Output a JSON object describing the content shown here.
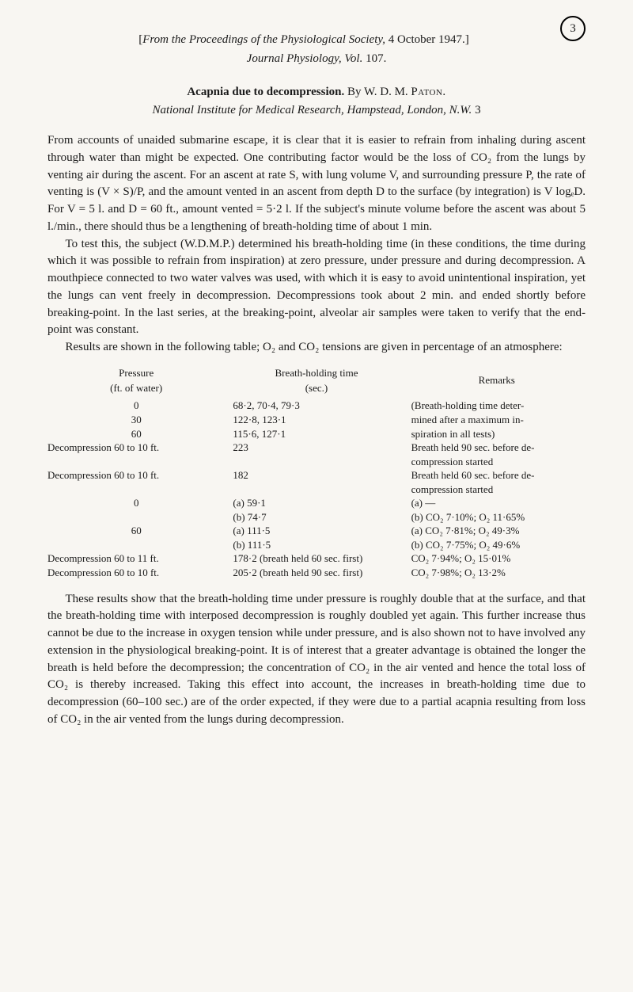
{
  "page_number": "3",
  "source_prefix": "[",
  "source_italic1": "From the Proceedings of the Physiological Society,",
  "source_date": " 4 October 1947.]",
  "source_line2": "Journal Physiology, Vol.",
  "source_vol": " 107.",
  "title_bold": "Acapnia due to decompression.",
  "title_by": " By W. D. M. ",
  "author_surname": "Paton.",
  "affil_italic": "National Institute for Medical Research, Hampstead, London, N.W.",
  "affil_num": " 3",
  "para1": "From accounts of unaided submarine escape, it is clear that it is easier to refrain from inhaling during ascent through water than might be expected. One contributing factor would be the loss of CO₂ from the lungs by venting air during the ascent. For an ascent at rate S, with lung volume V, and surrounding pressure P, the rate of venting is (V × S)/P, and the amount vented in an ascent from depth D to the surface (by integration) is V logₑD. For V = 5 l. and D = 60 ft., amount vented = 5·2 l. If the subject's minute volume before the ascent was about 5 l./min., there should thus be a lengthening of breath-holding time of about 1 min.",
  "para2": "To test this, the subject (W.D.M.P.) determined his breath-holding time (in these conditions, the time during which it was possible to refrain from inspiration) at zero pressure, under pressure and during decompression. A mouthpiece connected to two water valves was used, with which it is easy to avoid unintentional inspiration, yet the lungs can vent freely in decompression. Decompressions took about 2 min. and ended shortly before breaking-point. In the last series, at the breaking-point, alveolar air samples were taken to verify that the end-point was constant.",
  "para3": "Results are shown in the following table; O₂ and CO₂ tensions are given in percentage of an atmosphere:",
  "table": {
    "header": {
      "col1_l1": "Pressure",
      "col1_l2": "(ft. of water)",
      "col2_l1": "Breath-holding time",
      "col2_l2": "(sec.)",
      "col3": "Remarks"
    },
    "rows": [
      {
        "c1": "0",
        "c2": "68·2, 70·4, 79·3",
        "c3": "(Breath-holding time deter-"
      },
      {
        "c1": "30",
        "c2": "122·8, 123·1",
        "c3": "mined after a maximum in-"
      },
      {
        "c1": "60",
        "c2": "115·6, 127·1",
        "c3": "spiration in all tests)"
      },
      {
        "c1": "Decompression 60 to 10 ft.",
        "c2": "223",
        "c3": "Breath held 90 sec. before de-"
      },
      {
        "c1": "",
        "c2": "",
        "c3": "compression started"
      },
      {
        "c1": "Decompression 60 to 10 ft.",
        "c2": "182",
        "c3": "Breath held 60 sec. before de-"
      },
      {
        "c1": "",
        "c2": "",
        "c3": "compression started"
      },
      {
        "c1": "0",
        "c2": "(a) 59·1",
        "c3": "(a)               —"
      },
      {
        "c1": "",
        "c2": "(b) 74·7",
        "c3": "(b) CO₂ 7·10%; O₂ 11·65%"
      },
      {
        "c1": "60",
        "c2": "(a) 111·5",
        "c3": "(a) CO₂ 7·81%; O₂ 49·3%"
      },
      {
        "c1": "",
        "c2": "(b) 111·5",
        "c3": "(b) CO₂ 7·75%; O₂ 49·6%"
      },
      {
        "c1": "Decompression 60 to 11 ft.",
        "c2": "178·2 (breath held 60 sec. first)",
        "c3": "CO₂ 7·94%; O₂ 15·01%"
      },
      {
        "c1": "Decompression 60 to 10 ft.",
        "c2": "205·2 (breath held 90 sec. first)",
        "c3": "CO₂ 7·98%; O₂ 13·2%"
      }
    ]
  },
  "para4": "These results show that the breath-holding time under pressure is roughly double that at the surface, and that the breath-holding time with interposed decompression is roughly doubled yet again. This further increase thus cannot be due to the increase in oxygen tension while under pressure, and is also shown not to have involved any extension in the physiological breaking-point. It is of interest that a greater advantage is obtained the longer the breath is held before the decompression; the concentration of CO₂ in the air vented and hence the total loss of CO₂ is thereby increased. Taking this effect into account, the increases in breath-holding time due to decompression (60–100 sec.) are of the order expected, if they were due to a partial acapnia resulting from loss of CO₂ in the air vented from the lungs during decompression."
}
